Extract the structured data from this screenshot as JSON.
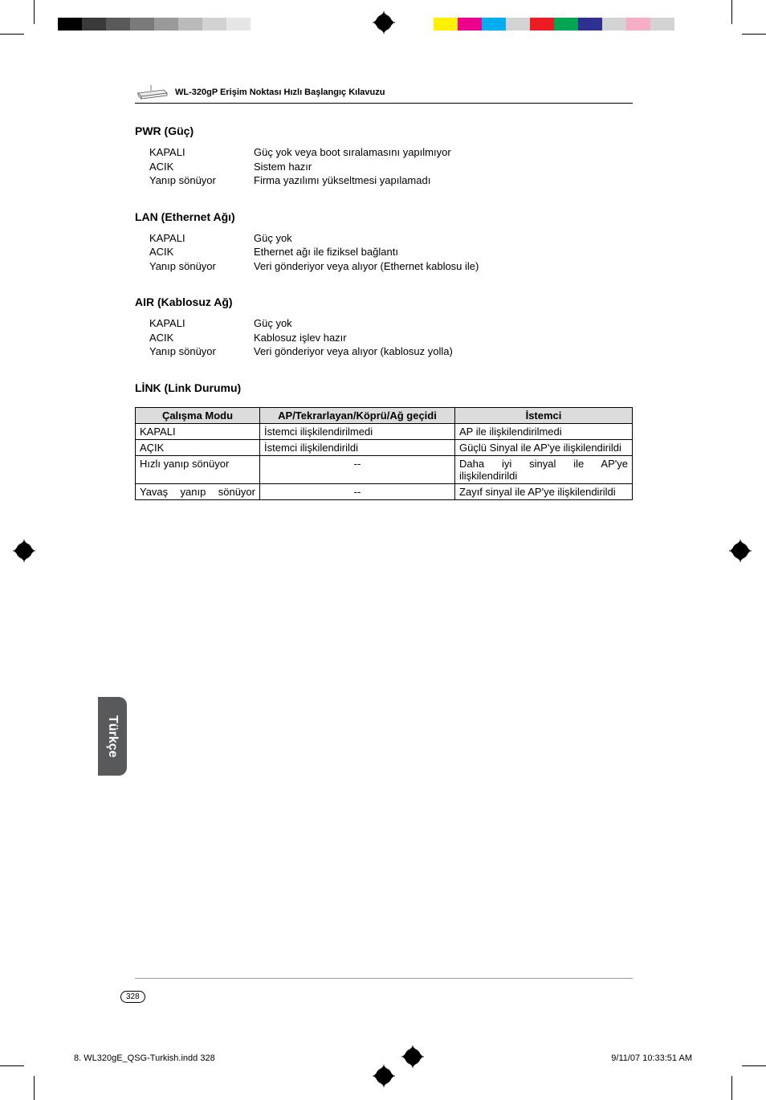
{
  "doc_title": "WL-320gP Erişim Noktası Hızlı Başlangıç Kılavuzu",
  "sections": {
    "pwr": {
      "title": "PWR (Güç)",
      "rows": [
        {
          "k": "KAPALI",
          "v": "Güç yok veya boot sıralamasını yapılmıyor"
        },
        {
          "k": "ACIK",
          "v": "Sistem hazır"
        },
        {
          "k": "Yanıp sönüyor",
          "v": "Firma yazılımı yükseltmesi yapılamadı"
        }
      ]
    },
    "lan": {
      "title": "LAN (Ethernet Ağı)",
      "rows": [
        {
          "k": "KAPALI",
          "v": "Güç yok"
        },
        {
          "k": "ACIK",
          "v": "Ethernet ağı ile fiziksel bağlantı"
        },
        {
          "k": "Yanıp sönüyor",
          "v": "Veri gönderiyor veya alıyor (Ethernet kablosu ile)"
        }
      ]
    },
    "air": {
      "title": "AIR (Kablosuz Ağ)",
      "rows": [
        {
          "k": "KAPALI",
          "v": "Güç yok"
        },
        {
          "k": "ACIK",
          "v": "Kablosuz işlev hazır"
        },
        {
          "k": "Yanıp sönüyor",
          "v": "Veri gönderiyor veya alıyor (kablosuz yolla)"
        }
      ]
    },
    "link": {
      "title": "LİNK (Link Durumu)",
      "headers": [
        "Çalışma Modu",
        "AP/Tekrarlayan/Köprü/Ağ geçidi",
        "İstemci"
      ],
      "rows": [
        {
          "c0": "KAPALI",
          "c1": "İstemci ilişkilendirilmedi",
          "c2": "AP ile ilişkilendirilmedi"
        },
        {
          "c0": "AÇIK",
          "c1": "İstemci ilişkilendirildi",
          "c2": "Güçlü Sinyal ile AP'ye ilişkilendirildi"
        },
        {
          "c0": "Hızlı yanıp sönüyor",
          "c1": "--",
          "c2": "Daha iyi sinyal ile AP'ye ilişkilendirildi"
        },
        {
          "c0": "Yavaş yanıp sönüyor",
          "c1": "--",
          "c2": "Zayıf sinyal ile AP'ye ilişkilendirildi"
        }
      ]
    }
  },
  "side_tab": "Türkçe",
  "page_number": "328",
  "imprint_file": "8. WL320gE_QSG-Turkish.indd   328",
  "imprint_time": "9/11/07   10:33:51 AM",
  "colorbars": {
    "left": [
      "#000000",
      "#3a3a3a",
      "#5a5a5a",
      "#7a7a7a",
      "#9a9a9a",
      "#bababa",
      "#d2d2d2",
      "#e6e6e6",
      "#ffffff",
      "#ffffff"
    ],
    "right": [
      "#fff200",
      "#ec008c",
      "#00aeef",
      "#d3d3d3",
      "#ed1c24",
      "#00a651",
      "#2e3192",
      "#d3d3d3",
      "#f7adc8",
      "#d3d3d3"
    ]
  },
  "colors": {
    "table_header_bg": "#dcdcdc",
    "side_tab_bg": "#58595b",
    "text": "#000000"
  }
}
